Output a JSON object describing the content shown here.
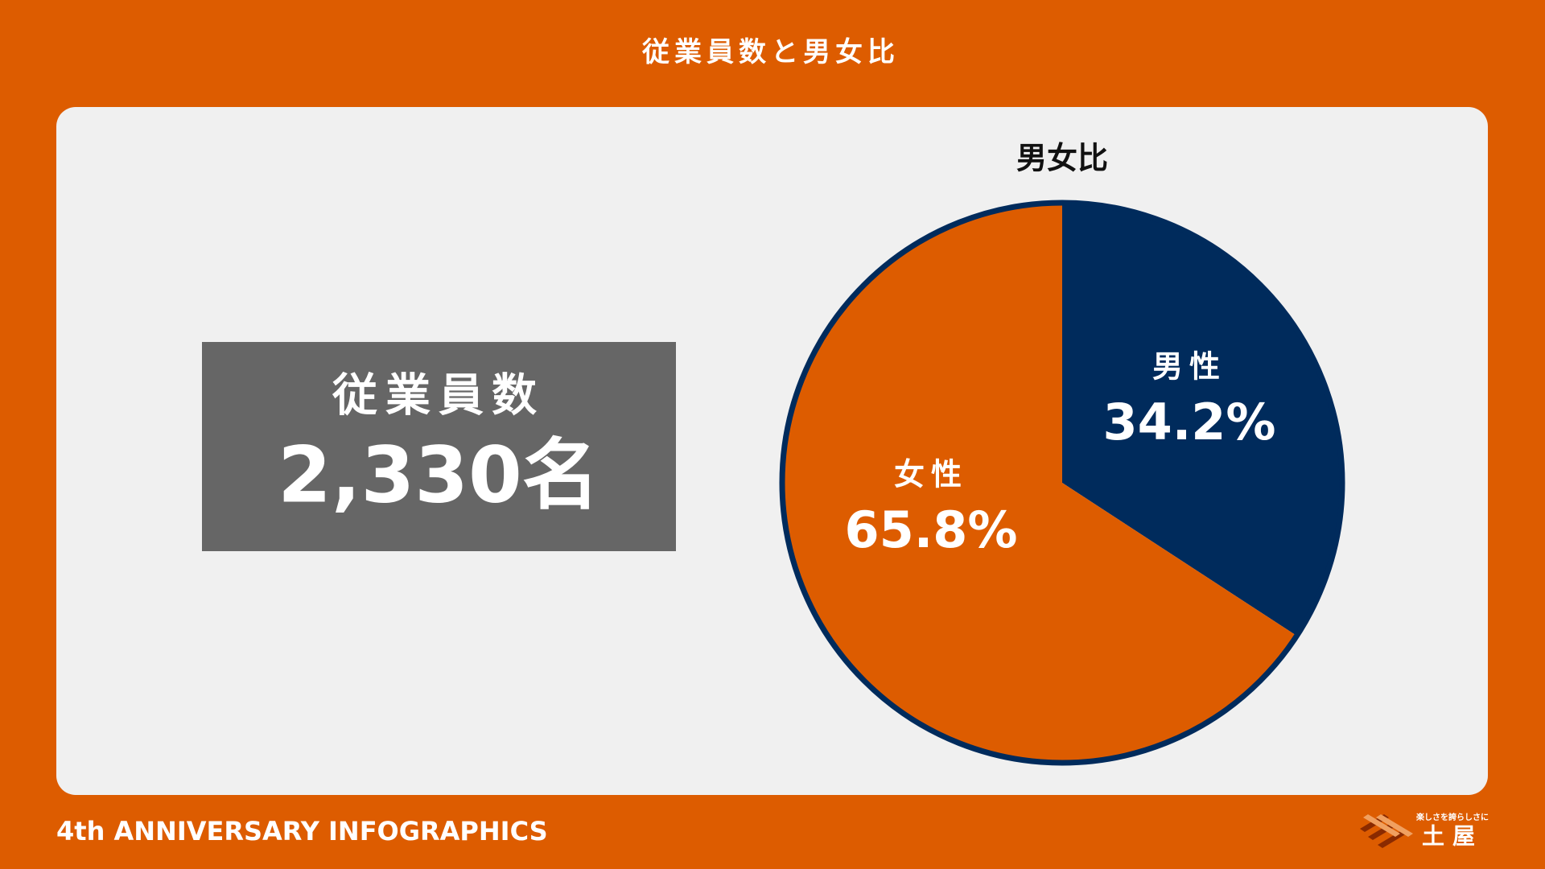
{
  "header": {
    "title": "従業員数と男女比"
  },
  "employee_box": {
    "label": "従業員数",
    "value": "2,330名"
  },
  "chart_data": {
    "type": "pie",
    "title": "男女比",
    "categories": [
      "男性",
      "女性"
    ],
    "values": [
      34.2,
      65.8
    ],
    "value_labels": [
      "34.2%",
      "65.8%"
    ],
    "colors": [
      "#002b5c",
      "#dd5c00"
    ],
    "border_color": "#002b5c"
  },
  "footer": {
    "text": "4th ANNIVERSARY INFOGRAPHICS"
  },
  "logo": {
    "tagline": "楽しさを誇らしさに",
    "name": "土屋"
  }
}
